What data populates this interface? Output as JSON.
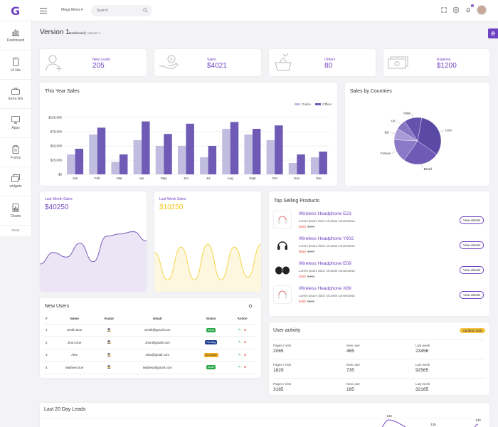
{
  "topbar": {
    "logo": "G",
    "mega_menu": "Mega Menu",
    "search_placeholder": "Search",
    "notification_count": "3"
  },
  "sidebar": {
    "items": [
      {
        "label": "Dashboard",
        "icon": "bar-chart-icon"
      },
      {
        "label": "UI kits",
        "icon": "phone-icon"
      },
      {
        "label": "Extra kits",
        "icon": "briefcase-icon"
      },
      {
        "label": "Apps",
        "icon": "monitor-icon"
      },
      {
        "label": "Forms",
        "icon": "clipboard-icon"
      },
      {
        "label": "widgets",
        "icon": "layers-icon"
      },
      {
        "label": "Charts",
        "icon": "charts-icon"
      }
    ],
    "copyright": "©2021"
  },
  "page": {
    "title": "Version 1",
    "breadcrumb": [
      "Dashboard",
      "Version 1"
    ]
  },
  "stats": [
    {
      "label": "New Leads",
      "value": "205",
      "icon": "user-add-icon"
    },
    {
      "label": "Sales",
      "value": "$4021",
      "icon": "hand-money-icon"
    },
    {
      "label": "Orders",
      "value": "80",
      "icon": "basket-icon"
    },
    {
      "label": "Expense",
      "value": "$1200",
      "icon": "cash-icon"
    }
  ],
  "sales_chart": {
    "title": "This Year Sales",
    "legend": [
      "Online",
      "Offline"
    ]
  },
  "countries_chart": {
    "title": "Sales by Countries"
  },
  "last_month": {
    "label": "Last Month Sales",
    "value": "$40250"
  },
  "last_week": {
    "label": "Last Week Sales",
    "value": "$10250"
  },
  "top_products": {
    "title": "Top Selling Products",
    "items": [
      {
        "name": "Wireless Headphone E23",
        "desc": "Lorem ipsum dolor sit amet consectetur.",
        "price": "$450",
        "old_price": "$500",
        "button": "View details"
      },
      {
        "name": "Wireless Headphone Y902",
        "desc": "Lorem ipsum dolor sit amet consectetur.",
        "price": "$550",
        "old_price": "$600",
        "button": "View details"
      },
      {
        "name": "Wireless Headphone E09",
        "desc": "Lorem ipsum dolor sit amet consectetur.",
        "price": "$250",
        "old_price": "$300",
        "button": "View details"
      },
      {
        "name": "Wireless Headphone X89",
        "desc": "Lorem ipsum dolor sit amet consectetur.",
        "price": "$450",
        "old_price": "$500",
        "button": "View details"
      }
    ]
  },
  "new_users": {
    "title": "New Users",
    "columns": [
      "#",
      "Name",
      "Avatar",
      "Email",
      "Status",
      "Action"
    ],
    "rows": [
      {
        "id": "1",
        "name": "Smith Doe",
        "email": "Smith@gmail.com",
        "status": "Active",
        "status_color": "#28a745"
      },
      {
        "id": "2",
        "name": "Jhon Doe",
        "email": "Jhon@gmail.com",
        "status": "Pending",
        "status_color": "#1d3b8f"
      },
      {
        "id": "3",
        "name": "Alex",
        "email": "Otto@gmail.com",
        "status": "Not Active",
        "status_color": "#f0ad1e"
      },
      {
        "id": "4",
        "name": "Mathew Doe",
        "email": "Mathew@gmail.com",
        "status": "Active",
        "status_color": "#28a745"
      }
    ]
  },
  "user_activity": {
    "title": "User activity",
    "badge": "Updated daily",
    "rows": [
      [
        {
          "l": "Pages / Visit",
          "v": "2065"
        },
        {
          "l": "New user",
          "v": "465"
        },
        {
          "l": "Last week",
          "v": "23456"
        }
      ],
      [
        {
          "l": "Pages / Visit",
          "v": "1829"
        },
        {
          "l": "New user",
          "v": "735"
        },
        {
          "l": "Last week",
          "v": "92565"
        }
      ],
      [
        {
          "l": "Pages / Visit",
          "v": "3165"
        },
        {
          "l": "New user",
          "v": "165"
        },
        {
          "l": "Last week",
          "v": "32165"
        }
      ]
    ]
  },
  "leads": {
    "title": "Last 20 Day Leads"
  },
  "colors": {
    "accent": "#6f42c1",
    "online": "#c1bde0",
    "offline": "#6f5bb5",
    "yellow": "#f5d547"
  },
  "chart_data": [
    {
      "type": "bar",
      "title": "This Year Sales",
      "categories": [
        "Jan",
        "Feb",
        "Mar",
        "Apr",
        "May",
        "Jun",
        "Jul",
        "Aug",
        "Sept",
        "Oct",
        "Nov",
        "Dec"
      ],
      "series": [
        {
          "name": "Online",
          "values": [
            35,
            70,
            22,
            60,
            50,
            50,
            30,
            80,
            70,
            60,
            20,
            30
          ]
        },
        {
          "name": "Offline",
          "values": [
            45,
            82,
            35,
            93,
            71,
            89,
            50,
            92,
            80,
            86,
            35,
            40
          ]
        }
      ],
      "yticks": [
        "$0",
        "$25,000",
        "$50,000",
        "$75,000",
        "$100,000"
      ],
      "ylim": [
        0,
        100
      ],
      "legend_position": "top-right",
      "grid": true
    },
    {
      "type": "pie",
      "title": "Sales by Countries",
      "categories": [
        "USA",
        "Brazil",
        "France",
        "BD",
        "UK",
        "India"
      ],
      "values": [
        32,
        25,
        16,
        8,
        7,
        12
      ]
    },
    {
      "type": "area",
      "title": "Last Month Sales",
      "values": [
        20,
        45,
        35,
        65,
        25,
        80,
        85,
        90,
        70
      ]
    },
    {
      "type": "line",
      "title": "Last Week Sales",
      "values": [
        60,
        10,
        70,
        10,
        75,
        10,
        70,
        15,
        75
      ]
    },
    {
      "type": "line",
      "title": "Last 20 Day Leads",
      "points": [
        {
          "label": "145",
          "value": 145
        },
        {
          "label": "135",
          "value": 135
        },
        {
          "label": "140",
          "value": 140
        }
      ]
    }
  ]
}
